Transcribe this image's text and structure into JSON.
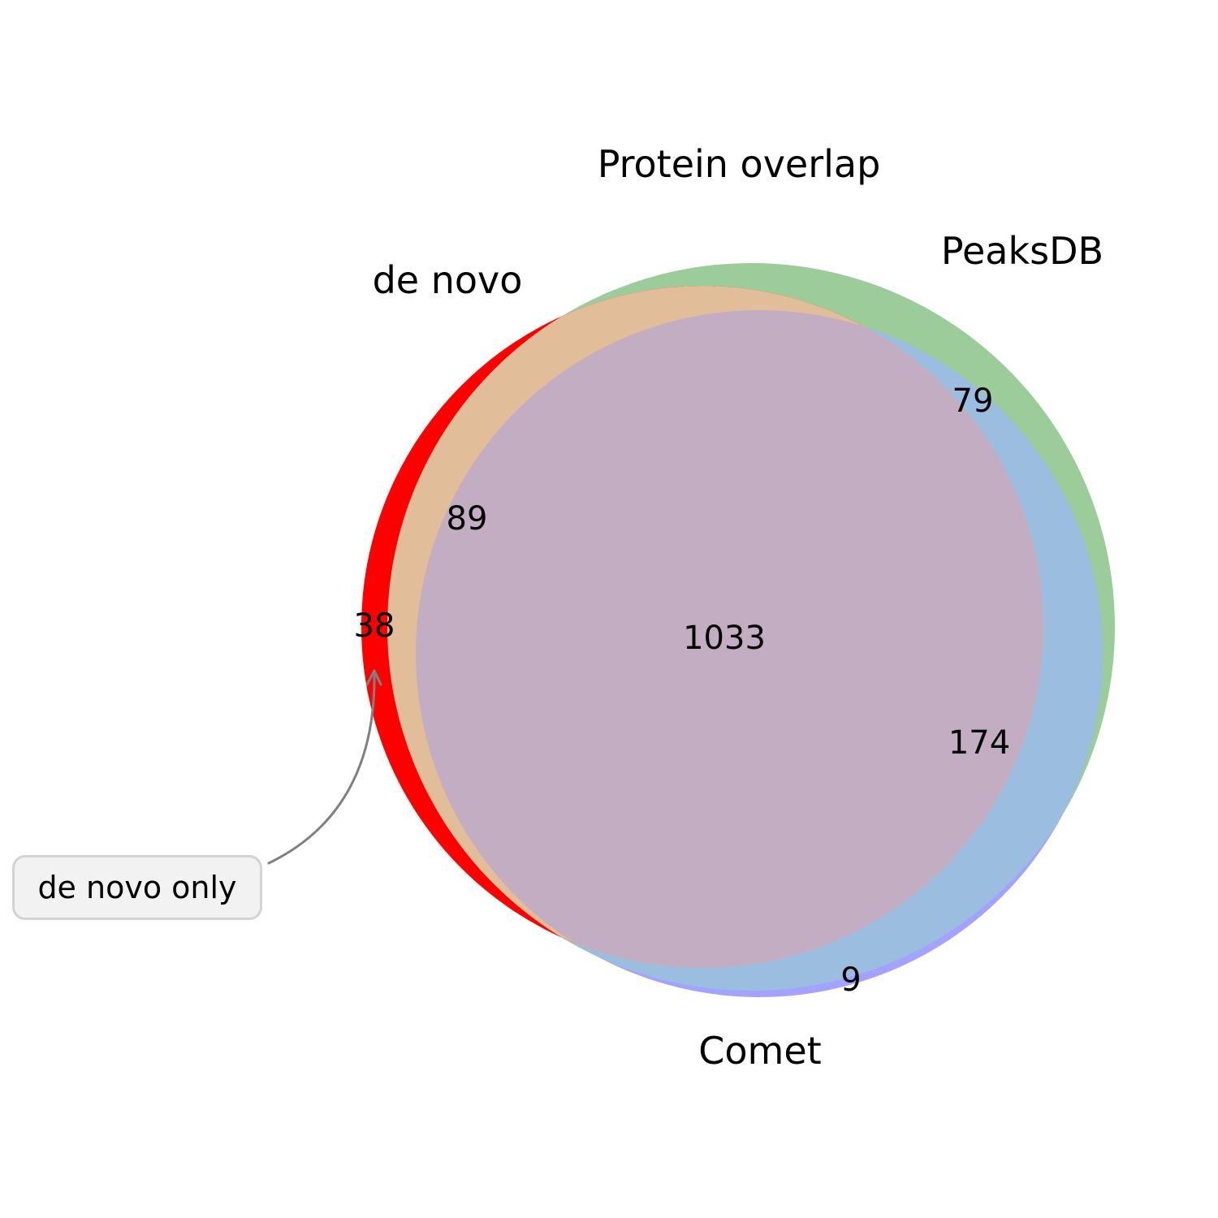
{
  "title": "Protein overlap",
  "sets": {
    "de_novo": {
      "label": "de novo",
      "color": "#ff0000"
    },
    "peaksdb": {
      "label": "PeaksDB",
      "color": "#9ccc9a"
    },
    "comet": {
      "label": "Comet",
      "color": "#a3a3ff"
    }
  },
  "region_colors": {
    "de_novo_peaksdb": "#e1bd99",
    "peaksdb_comet": "#9bbde0",
    "all_three": "#c3adc3"
  },
  "regions": {
    "de_novo_only": "38",
    "de_novo_and_peaksdb": "89",
    "peaksdb_only": "79",
    "all_three": "1033",
    "peaksdb_and_comet": "174",
    "comet_only": "9"
  },
  "callout": {
    "text": "de novo only",
    "arrow_color": "#808080"
  }
}
